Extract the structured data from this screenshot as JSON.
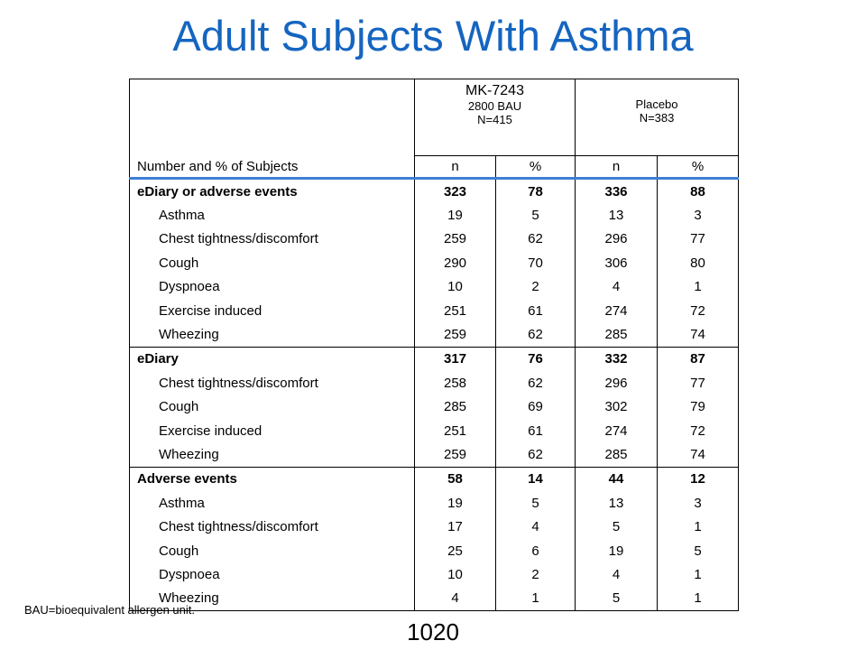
{
  "title": "Adult Subjects With Asthma",
  "header": {
    "row_label": "Number  and % of Subjects",
    "group1": {
      "name": "MK-7243",
      "dose": "2800 BAU",
      "n": "N=415"
    },
    "group2": {
      "name": "Placebo",
      "n": "N=383"
    },
    "cols": [
      "n",
      "%",
      "n",
      "%"
    ]
  },
  "rows": [
    {
      "label": "eDiary  or adverse events",
      "bold": true,
      "sep": false,
      "cells": [
        "323",
        "78",
        "336",
        "88"
      ]
    },
    {
      "label": "Asthma",
      "indent": true,
      "cells": [
        "19",
        "5",
        "13",
        "3"
      ]
    },
    {
      "label": "Chest tightness/discomfort",
      "indent": true,
      "cells": [
        "259",
        "62",
        "296",
        "77"
      ]
    },
    {
      "label": "Cough",
      "indent": true,
      "cells": [
        "290",
        "70",
        "306",
        "80"
      ]
    },
    {
      "label": "Dyspnoea",
      "indent": true,
      "cells": [
        "10",
        "2",
        "4",
        "1"
      ]
    },
    {
      "label": "Exercise  induced",
      "indent": true,
      "cells": [
        "251",
        "61",
        "274",
        "72"
      ]
    },
    {
      "label": "Wheezing",
      "indent": true,
      "cells": [
        "259",
        "62",
        "285",
        "74"
      ]
    },
    {
      "label": "eDiary",
      "bold": true,
      "sep": true,
      "cells": [
        "317",
        "76",
        "332",
        "87"
      ]
    },
    {
      "label": "Chest tightness/discomfort",
      "indent": true,
      "cells": [
        "258",
        "62",
        "296",
        "77"
      ]
    },
    {
      "label": "Cough",
      "indent": true,
      "cells": [
        "285",
        "69",
        "302",
        "79"
      ]
    },
    {
      "label": "Exercise  induced",
      "indent": true,
      "cells": [
        "251",
        "61",
        "274",
        "72"
      ]
    },
    {
      "label": "Wheezing",
      "indent": true,
      "cells": [
        "259",
        "62",
        "285",
        "74"
      ]
    },
    {
      "label": "Adverse  events",
      "bold": true,
      "sep": true,
      "cells": [
        "58",
        "14",
        "44",
        "12"
      ]
    },
    {
      "label": "Asthma",
      "indent": true,
      "cells": [
        "19",
        "5",
        "13",
        "3"
      ]
    },
    {
      "label": "Chest tightness/discomfort",
      "indent": true,
      "cells": [
        "17",
        "4",
        "5",
        "1"
      ]
    },
    {
      "label": "Cough",
      "indent": true,
      "cells": [
        "25",
        "6",
        "19",
        "5"
      ]
    },
    {
      "label": "Dyspnoea",
      "indent": true,
      "cells": [
        "10",
        "2",
        "4",
        "1"
      ]
    },
    {
      "label": "Wheezing",
      "indent": true,
      "cells": [
        "4",
        "1",
        "5",
        "1"
      ]
    }
  ],
  "footnote": "BAU=bioequivalent allergen unit.",
  "page_number": "1020",
  "colors": {
    "title": "#1565c0",
    "header_rule": "#3d7fd6"
  }
}
